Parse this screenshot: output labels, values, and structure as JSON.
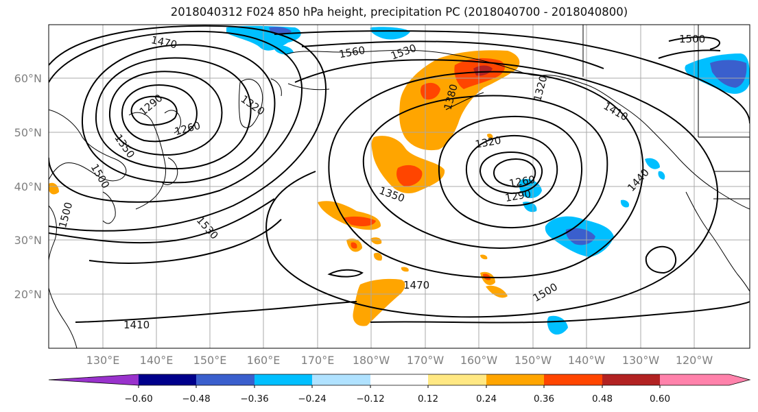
{
  "title": "2018040312 F024 850 hPa height, precipitation PC (2018040700 - 2018040800)",
  "lon_labels": [
    "130°E",
    "140°E",
    "150°E",
    "160°E",
    "170°E",
    "180°W",
    "170°W",
    "160°W",
    "150°W",
    "140°W",
    "130°W",
    "120°W"
  ],
  "lat_labels": [
    "60°N",
    "50°N",
    "40°N",
    "30°N",
    "20°N"
  ],
  "colorbar": {
    "tick_labels": [
      "−0.60",
      "−0.48",
      "−0.36",
      "−0.24",
      "−0.12",
      "0.12",
      "0.24",
      "0.36",
      "0.48",
      "0.60"
    ],
    "colors": [
      "#9932cc",
      "#00008b",
      "#3a5fcd",
      "#00bfff",
      "#b0e2ff",
      "#ffffff",
      "#ffe883",
      "#ffa500",
      "#ff4500",
      "#b22222",
      "#ff82ab"
    ]
  },
  "contour_labels": [
    "1470",
    "1560",
    "1530",
    "1500",
    "1290",
    "1260",
    "1320",
    "1350",
    "1380",
    "1320",
    "1410",
    "1320",
    "1440",
    "1260",
    "1290",
    "1350",
    "1530",
    "1500",
    "1500",
    "1470",
    "1500",
    "1410"
  ]
}
